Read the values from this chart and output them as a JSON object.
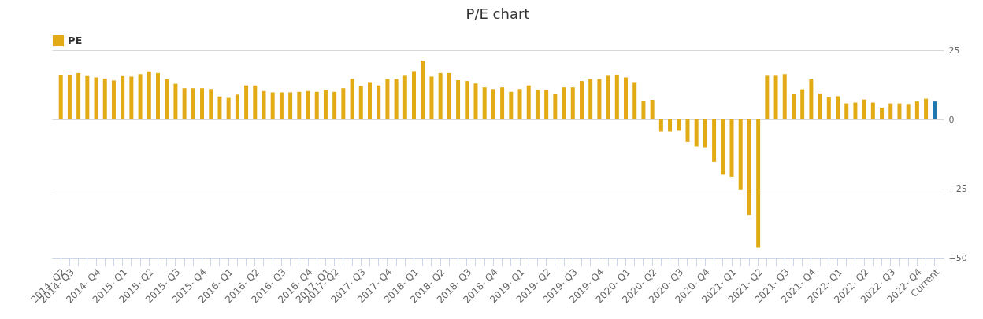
{
  "chart_data": {
    "type": "bar",
    "title": "P/E chart",
    "categories": [
      "2014- Q2",
      "2014- Q3",
      null,
      null,
      "2014- Q4",
      null,
      null,
      "2015- Q1",
      null,
      null,
      "2015- Q2",
      null,
      null,
      "2015- Q3",
      null,
      null,
      "2015- Q4",
      null,
      null,
      "2016- Q1",
      null,
      null,
      "2016- Q2",
      null,
      null,
      "2016- Q3",
      null,
      null,
      "2016- Q4",
      null,
      "2017- Q1",
      "2017- Q2",
      null,
      null,
      "2017- Q3",
      null,
      null,
      "2017- Q4",
      null,
      null,
      "2018- Q1",
      null,
      null,
      "2018- Q2",
      null,
      null,
      "2018- Q3",
      null,
      null,
      "2018- Q4",
      null,
      null,
      "2019- Q1",
      null,
      null,
      "2019- Q2",
      null,
      null,
      "2019- Q3",
      null,
      null,
      "2019- Q4",
      null,
      null,
      "2020- Q1",
      null,
      null,
      "2020- Q2",
      null,
      null,
      "2020- Q3",
      null,
      null,
      "2020- Q4",
      null,
      null,
      "2021- Q1",
      null,
      null,
      "2021- Q2",
      null,
      null,
      "2021- Q3",
      null,
      null,
      "2021- Q4",
      null,
      null,
      "2022- Q1",
      null,
      null,
      "2022- Q2",
      null,
      null,
      "2022- Q3",
      null,
      null,
      "2022- Q4",
      null,
      "Current"
    ],
    "series": [
      {
        "name": "PE",
        "color": "#e2ab15",
        "colors": [
          "#e2ab15",
          "#e2ab15",
          "#e2ab15",
          "#e2ab15",
          "#e2ab15",
          "#e2ab15",
          "#e2ab15",
          "#e2ab15",
          "#e2ab15",
          "#e2ab15",
          "#e2ab15",
          "#e2ab15",
          "#e2ab15",
          "#e2ab15",
          "#e2ab15",
          "#e2ab15",
          "#e2ab15",
          "#e2ab15",
          "#e2ab15",
          "#e2ab15",
          "#e2ab15",
          "#e2ab15",
          "#e2ab15",
          "#e2ab15",
          "#e2ab15",
          "#e2ab15",
          "#e2ab15",
          "#e2ab15",
          "#e2ab15",
          "#e2ab15",
          "#e2ab15",
          "#e2ab15",
          "#e2ab15",
          "#e2ab15",
          "#e2ab15",
          "#e2ab15",
          "#e2ab15",
          "#e2ab15",
          "#e2ab15",
          "#e2ab15",
          "#e2ab15",
          "#e2ab15",
          "#e2ab15",
          "#e2ab15",
          "#e2ab15",
          "#e2ab15",
          "#e2ab15",
          "#e2ab15",
          "#e2ab15",
          "#e2ab15",
          "#e2ab15",
          "#e2ab15",
          "#e2ab15",
          "#e2ab15",
          "#e2ab15",
          "#e2ab15",
          "#e2ab15",
          "#e2ab15",
          "#e2ab15",
          "#e2ab15",
          "#e2ab15",
          "#e2ab15",
          "#e2ab15",
          "#e2ab15",
          "#e2ab15",
          "#e2ab15",
          "#e2ab15",
          "#e2ab15",
          "#e2ab15",
          "#e2ab15",
          "#e2ab15",
          "#e2ab15",
          "#e2ab15",
          "#e2ab15",
          "#e2ab15",
          "#e2ab15",
          "#e2ab15",
          "#e2ab15",
          "#e2ab15",
          "#e2ab15",
          "#e2ab15",
          "#e2ab15",
          "#e2ab15",
          "#e2ab15",
          "#e2ab15",
          "#e2ab15",
          "#e2ab15",
          "#e2ab15",
          "#e2ab15",
          "#e2ab15",
          "#e2ab15",
          "#e2ab15",
          "#e2ab15",
          "#e2ab15",
          "#e2ab15",
          "#e2ab15",
          "#e2ab15",
          "#e2ab15",
          "#e2ab15",
          "#1f78b0"
        ],
        "values": [
          15.9,
          16.2,
          16.8,
          15.7,
          15.2,
          14.8,
          14.1,
          15.7,
          15.5,
          16.4,
          17.4,
          16.8,
          14.5,
          12.9,
          11.3,
          11.3,
          11.3,
          11.0,
          8.3,
          7.8,
          9.0,
          12.3,
          12.3,
          10.3,
          9.8,
          9.8,
          9.8,
          10.0,
          10.3,
          10.0,
          10.8,
          10.0,
          11.3,
          14.7,
          12.1,
          13.5,
          12.3,
          14.6,
          14.6,
          15.8,
          17.5,
          21.3,
          15.5,
          16.8,
          16.8,
          14.2,
          13.9,
          13.0,
          11.6,
          11.0,
          11.6,
          10.0,
          11.0,
          12.3,
          10.7,
          10.7,
          9.1,
          11.6,
          11.6,
          13.9,
          14.6,
          14.6,
          15.8,
          16.1,
          15.2,
          13.5,
          6.8,
          7.1,
          -4.4,
          -4.4,
          -4.1,
          -8.2,
          -9.8,
          -10.1,
          -15.3,
          -20.0,
          -20.7,
          -25.5,
          -34.7,
          -46.2,
          15.8,
          15.8,
          16.4,
          9.1,
          10.9,
          14.5,
          9.4,
          8.1,
          8.4,
          5.8,
          6.1,
          7.2,
          6.1,
          4.2,
          5.8,
          5.8,
          5.6,
          6.5,
          7.5,
          6.5
        ]
      }
    ],
    "ylim": [
      -50,
      25
    ],
    "yticks": [
      25,
      0,
      -25,
      -50
    ],
    "grid": "y",
    "legend": "top"
  }
}
